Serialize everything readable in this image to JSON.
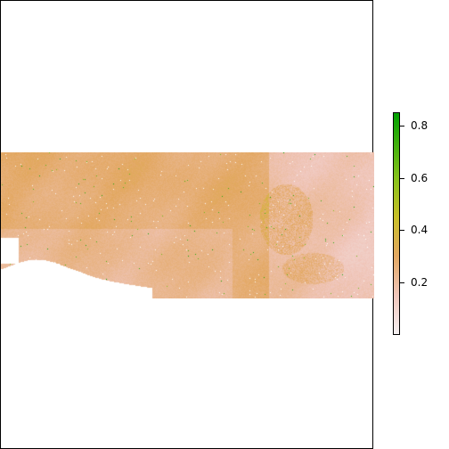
{
  "chart_data": {
    "type": "heatmap",
    "title": "",
    "xlabel": "",
    "ylabel": "",
    "color_scale": {
      "min": 0.0,
      "max": 0.85,
      "stops": [
        {
          "value": 0.0,
          "color": "#f5f0f2"
        },
        {
          "value": 0.15,
          "color": "#f0c6bb"
        },
        {
          "value": 0.3,
          "color": "#e3a862"
        },
        {
          "value": 0.45,
          "color": "#c9c028"
        },
        {
          "value": 0.6,
          "color": "#86c21a"
        },
        {
          "value": 0.85,
          "color": "#00a000"
        }
      ]
    },
    "legend": {
      "position": "right",
      "ticks": [
        {
          "value": 0.2,
          "label": "0.2"
        },
        {
          "value": 0.4,
          "label": "0.4"
        },
        {
          "value": 0.6,
          "label": "0.6"
        },
        {
          "value": 0.8,
          "label": "0.8"
        }
      ]
    },
    "grid": false
  }
}
